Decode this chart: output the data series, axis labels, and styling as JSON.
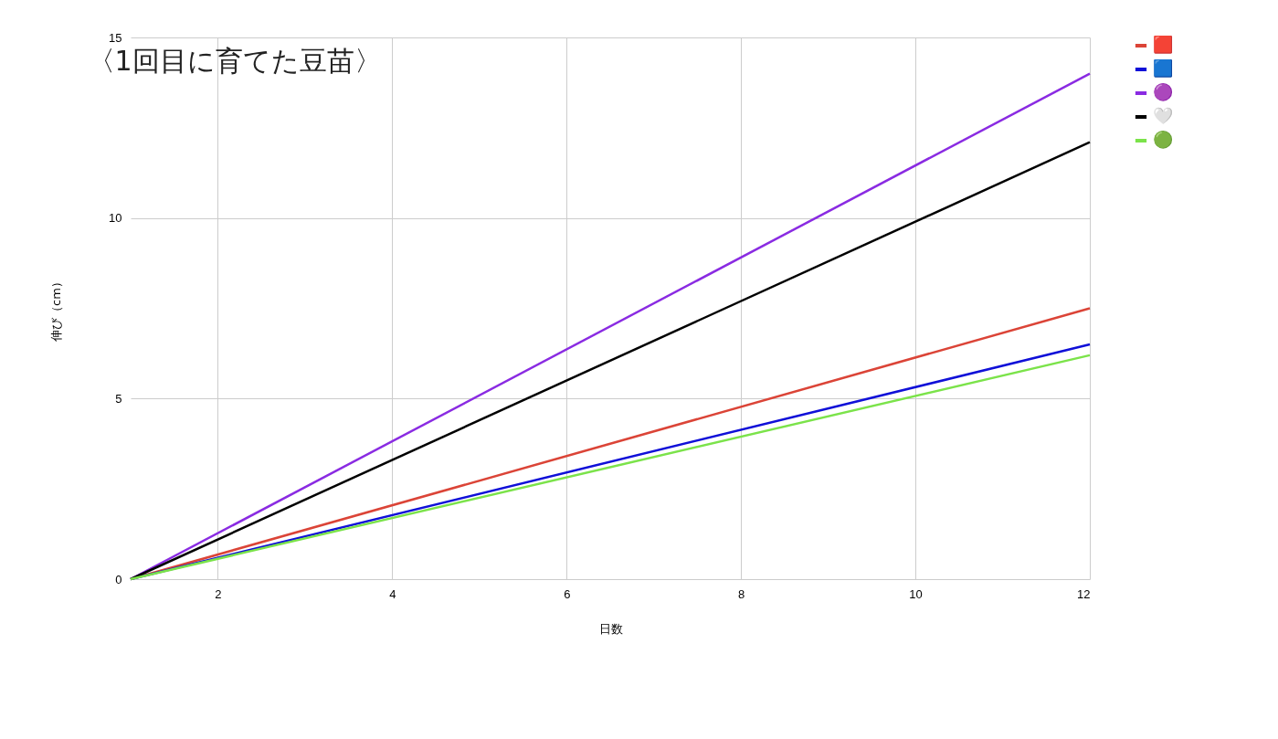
{
  "chart_data": {
    "type": "line",
    "title": "〈1回目に育てた豆苗〉",
    "xlabel": "日数",
    "ylabel": "伸び（cm）",
    "x": [
      1,
      12
    ],
    "series": [
      {
        "name": "🟥",
        "color": "#db4437",
        "values": [
          0,
          7.5
        ]
      },
      {
        "name": "🟦",
        "color": "#1010d8",
        "values": [
          0,
          6.5
        ]
      },
      {
        "name": "🟣",
        "color": "#8a2be2",
        "values": [
          0,
          14.0
        ]
      },
      {
        "name": "🤍",
        "color": "#000000",
        "values": [
          0,
          12.1
        ]
      },
      {
        "name": "🟢",
        "color": "#7be34a",
        "values": [
          0,
          6.2
        ]
      }
    ],
    "xlim": [
      1,
      12
    ],
    "xticks": [
      2,
      4,
      6,
      8,
      10,
      12
    ],
    "ylim": [
      0,
      15
    ],
    "yticks": [
      0,
      5,
      10,
      15
    ],
    "grid": true,
    "legend": "top right",
    "marker": "none",
    "line_style": "solid"
  }
}
